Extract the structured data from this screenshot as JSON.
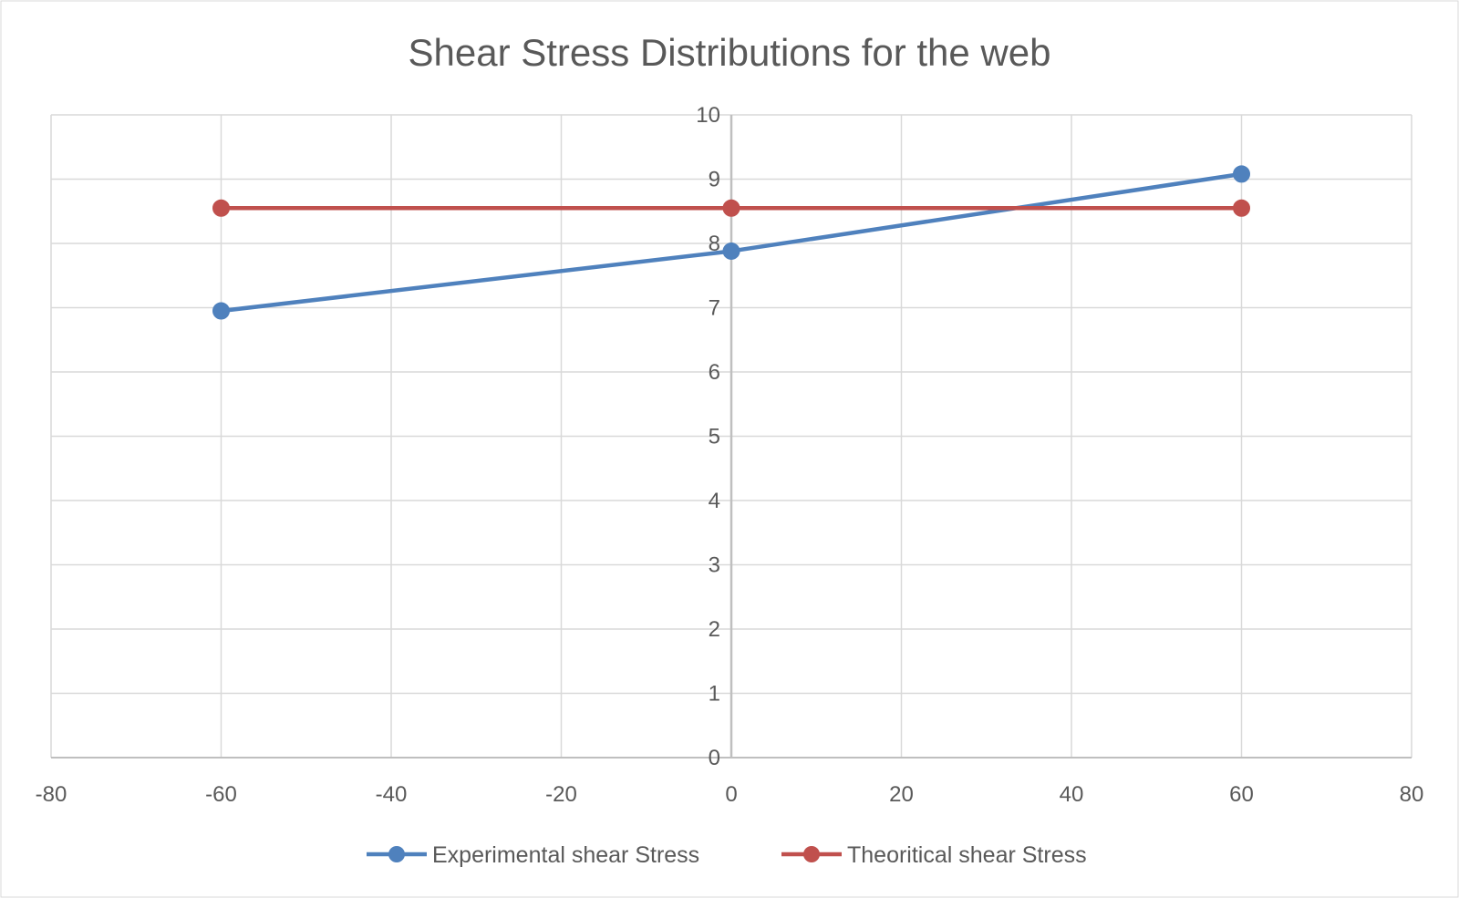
{
  "chart_data": {
    "type": "scatter",
    "title": "Shear Stress Distributions for the web",
    "xlabel": "",
    "ylabel": "",
    "xlim": [
      -80,
      80
    ],
    "ylim": [
      0,
      10
    ],
    "x_ticks": [
      "-80",
      "-60",
      "-40",
      "-20",
      "0",
      "20",
      "40",
      "60",
      "80"
    ],
    "y_ticks": [
      "0",
      "1",
      "2",
      "3",
      "4",
      "5",
      "6",
      "7",
      "8",
      "9",
      "10"
    ],
    "grid": true,
    "legend_position": "bottom",
    "series": [
      {
        "name": "Experimental  shear Stress",
        "color": "#4F81BD",
        "marker": "circle",
        "points": [
          {
            "x": -60,
            "y": 6.95
          },
          {
            "x": 0,
            "y": 7.88
          },
          {
            "x": 60,
            "y": 9.08
          }
        ]
      },
      {
        "name": "Theoritical shear Stress",
        "color": "#C0504D",
        "marker": "circle",
        "points": [
          {
            "x": -60,
            "y": 8.55
          },
          {
            "x": 0,
            "y": 8.55
          },
          {
            "x": 60,
            "y": 8.55
          }
        ]
      }
    ]
  }
}
